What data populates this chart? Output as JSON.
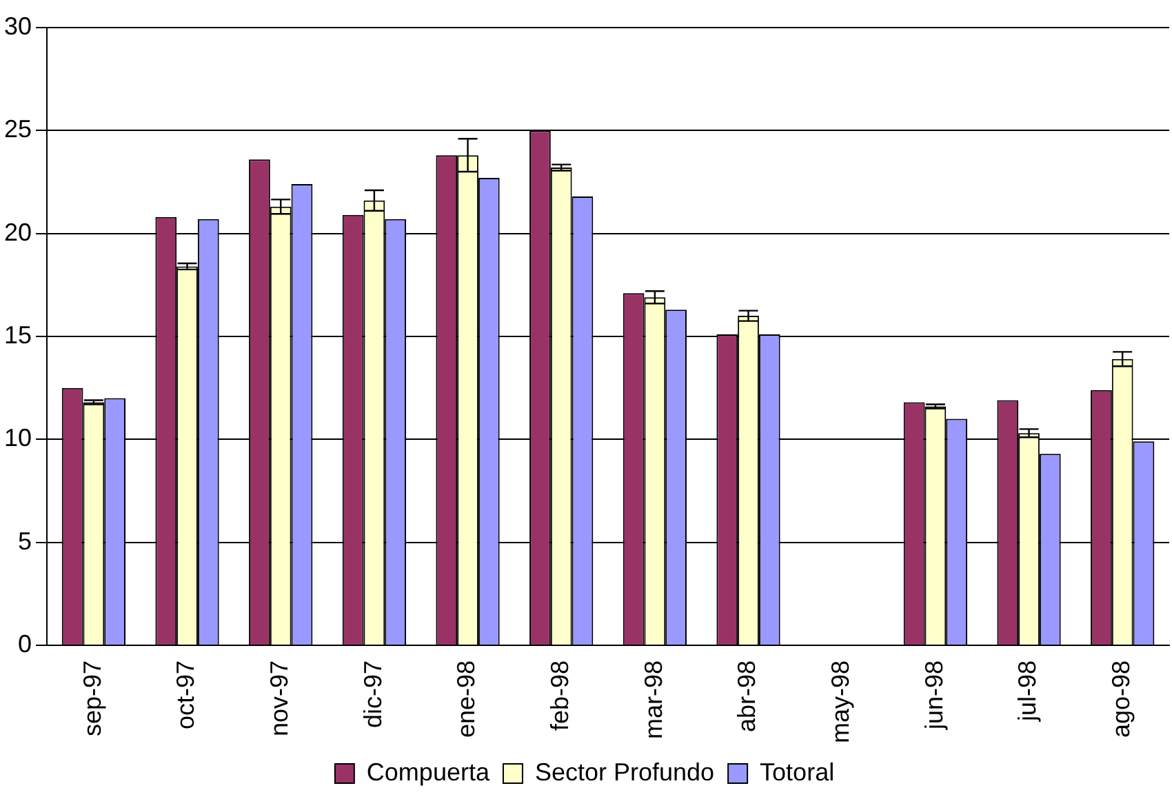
{
  "chart_data": {
    "type": "bar",
    "categories": [
      "sep-97",
      "oct-97",
      "nov-97",
      "dic-97",
      "ene-98",
      "feb-98",
      "mar-98",
      "abr-98",
      "may-98",
      "jun-98",
      "jul-98",
      "ago-98"
    ],
    "series": [
      {
        "name": "Compuerta",
        "color": "#993366",
        "values": [
          12.5,
          20.8,
          23.6,
          20.9,
          23.8,
          25.0,
          17.1,
          15.1,
          null,
          11.8,
          11.9,
          12.4
        ]
      },
      {
        "name": "Sector Profundo",
        "color": "#ffffcc",
        "values": [
          11.8,
          18.4,
          21.3,
          21.6,
          23.8,
          23.2,
          16.9,
          16.0,
          null,
          11.6,
          10.3,
          13.9
        ],
        "errors": [
          0.1,
          0.15,
          0.35,
          0.5,
          0.8,
          0.15,
          0.3,
          0.25,
          null,
          0.1,
          0.2,
          0.35
        ]
      },
      {
        "name": "Totoral",
        "color": "#9999ff",
        "values": [
          12.0,
          20.7,
          22.4,
          20.7,
          22.7,
          21.8,
          16.3,
          15.1,
          null,
          11.0,
          9.3,
          9.9
        ]
      }
    ],
    "ylim": [
      0,
      30
    ],
    "yticks": [
      0,
      5,
      10,
      15,
      20,
      25,
      30
    ],
    "grid": "y",
    "legend": "bottom"
  }
}
